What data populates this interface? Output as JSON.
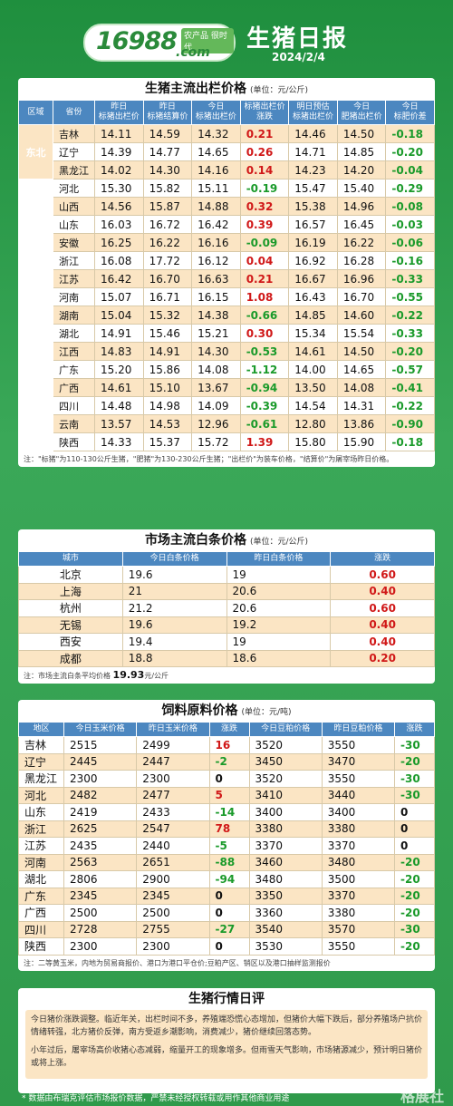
{
  "header": {
    "logo_num": "16988",
    "logo_domain": ".com",
    "logo_tag": "农产品 很时代",
    "title": "生猪日报",
    "date": "2024/2/4"
  },
  "hog": {
    "title": "生猪主流出栏价格",
    "unit": "(单位：元/公斤)",
    "headers": [
      "区域",
      "省份",
      "昨日\n标猪出栏价",
      "昨日\n标猪结算价",
      "今日\n标猪出栏价",
      "标猪出栏价\n涨跌",
      "明日预估\n标猪出栏价",
      "今日\n肥猪出栏价",
      "今日\n标肥价差"
    ],
    "regions": [
      {
        "name": "东北",
        "rows": [
          [
            "吉林",
            "14.11",
            "14.59",
            "14.32",
            "0.21",
            "14.46",
            "14.50",
            "-0.18"
          ],
          [
            "辽宁",
            "14.39",
            "14.77",
            "14.65",
            "0.26",
            "14.71",
            "14.85",
            "-0.20"
          ],
          [
            "黑龙江",
            "14.02",
            "14.30",
            "14.16",
            "0.14",
            "14.23",
            "14.20",
            "-0.04"
          ]
        ]
      },
      {
        "name": "华北",
        "rows": [
          [
            "河北",
            "15.30",
            "15.82",
            "15.11",
            "-0.19",
            "15.47",
            "15.40",
            "-0.29"
          ],
          [
            "山西",
            "14.56",
            "15.87",
            "14.88",
            "0.32",
            "15.38",
            "14.96",
            "-0.08"
          ]
        ]
      },
      {
        "name": "华东",
        "rows": [
          [
            "山东",
            "16.03",
            "16.72",
            "16.42",
            "0.39",
            "16.57",
            "16.45",
            "-0.03"
          ],
          [
            "安徽",
            "16.25",
            "16.22",
            "16.16",
            "-0.09",
            "16.19",
            "16.22",
            "-0.06"
          ],
          [
            "浙江",
            "16.08",
            "17.72",
            "16.12",
            "0.04",
            "16.92",
            "16.28",
            "-0.16"
          ],
          [
            "江苏",
            "16.42",
            "16.70",
            "16.63",
            "0.21",
            "16.67",
            "16.96",
            "-0.33"
          ]
        ]
      },
      {
        "name": "华中",
        "rows": [
          [
            "河南",
            "15.07",
            "16.71",
            "16.15",
            "1.08",
            "16.43",
            "16.70",
            "-0.55"
          ],
          [
            "湖南",
            "15.04",
            "15.32",
            "14.38",
            "-0.66",
            "14.85",
            "14.60",
            "-0.22"
          ],
          [
            "湖北",
            "14.91",
            "15.46",
            "15.21",
            "0.30",
            "15.34",
            "15.54",
            "-0.33"
          ],
          [
            "江西",
            "14.83",
            "14.91",
            "14.30",
            "-0.53",
            "14.61",
            "14.50",
            "-0.20"
          ]
        ]
      },
      {
        "name": "华南",
        "rows": [
          [
            "广东",
            "15.20",
            "15.86",
            "14.08",
            "-1.12",
            "14.00",
            "14.65",
            "-0.57"
          ],
          [
            "广西",
            "14.61",
            "15.10",
            "13.67",
            "-0.94",
            "13.50",
            "14.08",
            "-0.41"
          ]
        ]
      },
      {
        "name": "西南",
        "rows": [
          [
            "四川",
            "14.48",
            "14.98",
            "14.09",
            "-0.39",
            "14.54",
            "14.31",
            "-0.22"
          ],
          [
            "云南",
            "13.57",
            "14.53",
            "12.96",
            "-0.61",
            "12.80",
            "13.86",
            "-0.90"
          ]
        ]
      },
      {
        "name": "西北",
        "rows": [
          [
            "陕西",
            "14.33",
            "15.37",
            "15.72",
            "1.39",
            "15.80",
            "15.90",
            "-0.18"
          ]
        ]
      }
    ],
    "note": "注：\"标猪\"为110-130公斤生猪，\"肥猪\"为130-230公斤生猪；\"出栏价\"为装车价格，\"结算价\"为屠宰场昨日价格。"
  },
  "pork": {
    "title": "市场主流白条价格",
    "unit": "(单位：元/公斤)",
    "headers": [
      "城市",
      "今日白条价格",
      "昨日白条价格",
      "涨跌"
    ],
    "rows": [
      [
        "北京",
        "19.6",
        "19",
        "0.60"
      ],
      [
        "上海",
        "21",
        "20.6",
        "0.40"
      ],
      [
        "杭州",
        "21.2",
        "20.6",
        "0.60"
      ],
      [
        "无锡",
        "19.6",
        "19.2",
        "0.40"
      ],
      [
        "西安",
        "19.4",
        "19",
        "0.40"
      ],
      [
        "成都",
        "18.8",
        "18.6",
        "0.20"
      ]
    ],
    "note_prefix": "注：市场主流白条平均价格",
    "avg": "19.93",
    "note_suffix": "元/公斤"
  },
  "feed": {
    "title": "饲料原料价格",
    "unit": "(单位：元/吨)",
    "headers": [
      "地区",
      "今日玉米价格",
      "昨日玉米价格",
      "涨跌",
      "今日豆粕价格",
      "昨日豆粕价格",
      "涨跌"
    ],
    "rows": [
      [
        "吉林",
        "2515",
        "2499",
        "16",
        "3520",
        "3550",
        "-30"
      ],
      [
        "辽宁",
        "2445",
        "2447",
        "-2",
        "3450",
        "3470",
        "-20"
      ],
      [
        "黑龙江",
        "2300",
        "2300",
        "0",
        "3520",
        "3550",
        "-30"
      ],
      [
        "河北",
        "2482",
        "2477",
        "5",
        "3410",
        "3440",
        "-30"
      ],
      [
        "山东",
        "2419",
        "2433",
        "-14",
        "3400",
        "3400",
        "0"
      ],
      [
        "浙江",
        "2625",
        "2547",
        "78",
        "3380",
        "3380",
        "0"
      ],
      [
        "江苏",
        "2435",
        "2440",
        "-5",
        "3370",
        "3370",
        "0"
      ],
      [
        "河南",
        "2563",
        "2651",
        "-88",
        "3460",
        "3480",
        "-20"
      ],
      [
        "湖北",
        "2806",
        "2900",
        "-94",
        "3480",
        "3500",
        "-20"
      ],
      [
        "广东",
        "2345",
        "2345",
        "0",
        "3350",
        "3370",
        "-20"
      ],
      [
        "广西",
        "2500",
        "2500",
        "0",
        "3360",
        "3380",
        "-20"
      ],
      [
        "四川",
        "2728",
        "2755",
        "-27",
        "3540",
        "3570",
        "-30"
      ],
      [
        "陕西",
        "2300",
        "2300",
        "0",
        "3530",
        "3550",
        "-20"
      ]
    ],
    "note": "注：二等黄玉米，内地为贸易商报价、港口为港口平仓价;豆粕产区、销区以及港口抽样监测报价"
  },
  "summary": {
    "title": "生猪行情日评",
    "p1": "今日猪价涨跌调整。临近年关，出栏时间不多，养殖端恐慌心态增加，但猪价大幅下跌后，部分养殖场户抗价情绪转强，北方猪价反弹，南方受返乡潮影响，消费减少，猪价继续回落态势。",
    "p2": "小年过后，屠宰场高价收猪心态减弱，缩量开工的现象增多。但雨雪天气影响，市场猪源减少，预计明日猪价或将上涨。"
  },
  "footer": "* 数据由布瑞克评估市场报价数据，严禁未经授权转载或用作其他商业用途",
  "watermark": "格展社"
}
